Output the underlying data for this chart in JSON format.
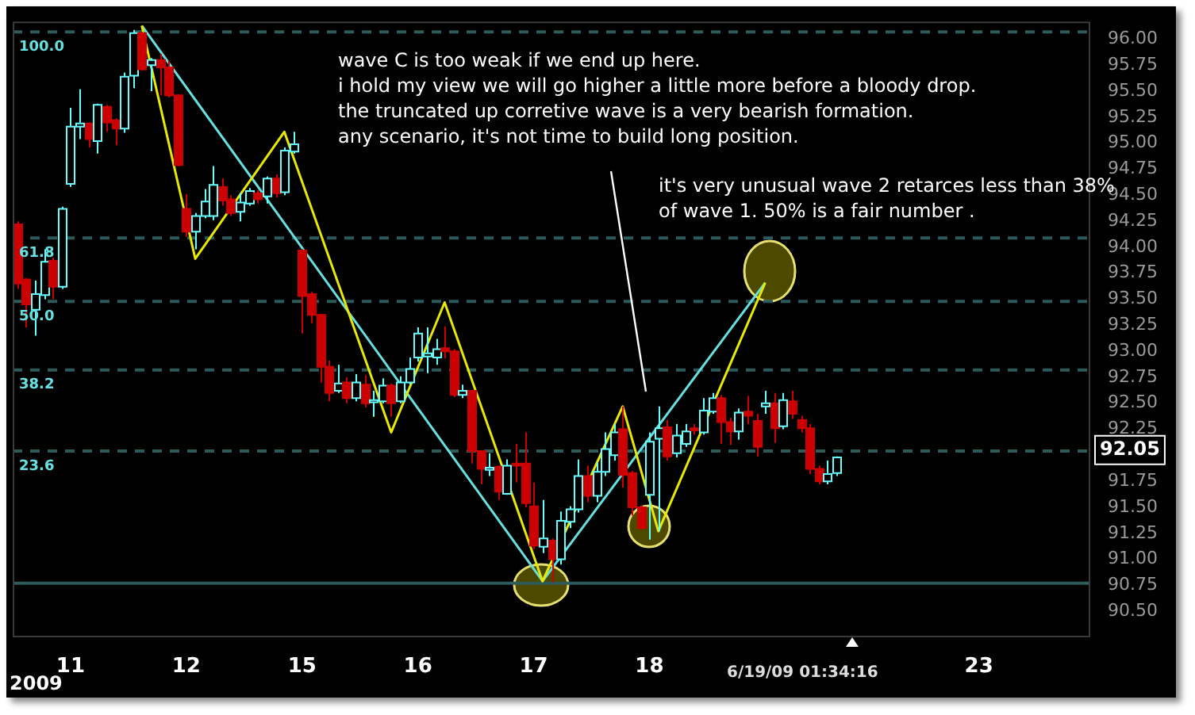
{
  "chart_data": {
    "type": "candlestick",
    "categories": [
      null,
      null,
      null,
      null,
      null,
      null,
      "11",
      null,
      null,
      null,
      null,
      null,
      null,
      null,
      null,
      null,
      null,
      null,
      null,
      "12",
      null,
      null,
      null,
      null,
      null,
      null,
      null,
      null,
      null,
      null,
      null,
      null,
      "15",
      null,
      null,
      null,
      null,
      null,
      null,
      null,
      null,
      null,
      null,
      null,
      null,
      "16",
      null,
      null,
      null,
      null,
      null,
      null,
      null,
      null,
      null,
      null,
      null,
      null,
      "17",
      null,
      null,
      null,
      null,
      null,
      null,
      null,
      null,
      null,
      null,
      null,
      null,
      "18",
      null,
      null,
      null,
      null,
      null,
      null,
      null,
      null,
      null,
      null,
      null,
      null,
      null,
      null,
      null,
      null,
      null,
      null,
      null,
      null,
      null,
      null,
      null,
      null,
      null,
      null,
      null,
      null,
      null,
      null,
      null,
      null,
      null,
      null,
      null,
      null,
      "23",
      null,
      null,
      null,
      null,
      null,
      null,
      null,
      null,
      null,
      null,
      null,
      null
    ],
    "ohlc": [
      [
        94.22,
        94.25,
        93.6,
        93.65
      ],
      [
        93.69,
        93.7,
        93.23,
        93.45
      ],
      [
        93.4,
        93.68,
        93.15,
        93.55
      ],
      [
        93.54,
        93.98,
        93.5,
        93.86
      ],
      [
        93.87,
        93.9,
        93.5,
        93.62
      ],
      [
        93.62,
        94.39,
        93.6,
        94.37
      ],
      [
        94.61,
        95.34,
        94.58,
        95.16
      ],
      [
        95.16,
        95.52,
        95.04,
        95.19
      ],
      [
        95.19,
        95.2,
        94.96,
        95.04
      ],
      [
        95.02,
        95.38,
        94.9,
        95.37
      ],
      [
        95.35,
        95.37,
        95.11,
        95.2
      ],
      [
        95.22,
        95.24,
        94.98,
        95.14
      ],
      [
        95.14,
        95.68,
        95.1,
        95.64
      ],
      [
        95.65,
        96.09,
        95.53,
        96.06
      ],
      [
        96.06,
        96.07,
        95.7,
        95.71
      ],
      [
        95.75,
        95.82,
        95.5,
        95.8
      ],
      [
        95.8,
        95.86,
        95.46,
        95.73
      ],
      [
        95.73,
        95.79,
        95.44,
        95.46
      ],
      [
        95.46,
        95.47,
        94.78,
        94.79
      ],
      [
        94.37,
        94.51,
        94.1,
        94.15
      ],
      [
        94.15,
        94.33,
        93.98,
        94.3
      ],
      [
        94.3,
        94.56,
        94.28,
        94.44
      ],
      [
        94.3,
        94.78,
        94.26,
        94.6
      ],
      [
        94.58,
        94.66,
        94.4,
        94.45
      ],
      [
        94.46,
        94.5,
        94.3,
        94.33
      ],
      [
        94.34,
        94.52,
        94.25,
        94.43
      ],
      [
        94.42,
        94.57,
        94.4,
        94.54
      ],
      [
        94.52,
        94.55,
        94.42,
        94.46
      ],
      [
        94.49,
        94.68,
        94.42,
        94.66
      ],
      [
        94.66,
        94.7,
        94.48,
        94.52
      ],
      [
        94.53,
        94.96,
        94.5,
        94.93
      ],
      [
        94.92,
        95.11,
        94.9,
        94.99
      ],
      [
        93.97,
        93.98,
        93.17,
        93.53
      ],
      [
        93.55,
        93.57,
        93.27,
        93.35
      ],
      [
        93.35,
        93.36,
        92.7,
        92.85
      ],
      [
        92.85,
        92.91,
        92.52,
        92.6
      ],
      [
        92.62,
        92.87,
        92.6,
        92.69
      ],
      [
        92.7,
        92.75,
        92.5,
        92.55
      ],
      [
        92.55,
        92.78,
        92.52,
        92.7
      ],
      [
        92.68,
        92.77,
        92.46,
        92.5
      ],
      [
        92.51,
        92.62,
        92.37,
        92.53
      ],
      [
        92.52,
        92.74,
        92.5,
        92.67
      ],
      [
        92.67,
        92.69,
        92.37,
        92.5
      ],
      [
        92.52,
        92.76,
        92.5,
        92.7
      ],
      [
        92.7,
        92.94,
        92.68,
        92.83
      ],
      [
        92.94,
        93.23,
        92.9,
        93.17
      ],
      [
        92.95,
        93.23,
        92.79,
        92.98
      ],
      [
        92.94,
        93.12,
        92.87,
        93.02
      ],
      [
        93.03,
        93.24,
        92.93,
        93.0
      ],
      [
        93.0,
        93.02,
        92.56,
        92.58
      ],
      [
        92.58,
        92.68,
        92.55,
        92.62
      ],
      [
        92.62,
        92.63,
        91.92,
        92.04
      ],
      [
        92.04,
        92.05,
        91.72,
        91.87
      ],
      [
        91.86,
        92.02,
        91.8,
        91.88
      ],
      [
        91.89,
        91.9,
        91.57,
        91.65
      ],
      [
        91.63,
        91.96,
        91.62,
        91.9
      ],
      [
        91.92,
        92.11,
        91.74,
        91.9
      ],
      [
        91.92,
        92.22,
        91.5,
        91.54
      ],
      [
        91.51,
        91.74,
        91.1,
        91.13
      ],
      [
        91.12,
        91.57,
        91.06,
        91.2
      ],
      [
        91.18,
        91.2,
        90.78,
        91.0
      ],
      [
        91.0,
        91.46,
        90.95,
        91.37
      ],
      [
        91.36,
        91.51,
        91.3,
        91.48
      ],
      [
        91.48,
        91.96,
        91.45,
        91.8
      ],
      [
        91.8,
        91.9,
        91.55,
        91.61
      ],
      [
        91.61,
        91.93,
        91.55,
        91.84
      ],
      [
        91.84,
        92.22,
        91.8,
        92.06
      ],
      [
        92.0,
        92.3,
        91.95,
        92.22
      ],
      [
        92.25,
        92.47,
        91.69,
        91.81
      ],
      [
        91.83,
        91.85,
        91.42,
        91.5
      ],
      [
        91.5,
        91.52,
        91.29,
        91.3
      ],
      [
        91.62,
        92.22,
        91.19,
        92.13
      ],
      [
        92.16,
        92.47,
        91.27,
        92.26
      ],
      [
        92.27,
        92.34,
        91.95,
        91.99
      ],
      [
        92.02,
        92.3,
        91.98,
        92.19
      ],
      [
        92.11,
        92.3,
        92.08,
        92.23
      ],
      [
        92.26,
        92.3,
        92.2,
        92.24
      ],
      [
        92.22,
        92.55,
        92.2,
        92.43
      ],
      [
        92.42,
        92.6,
        92.4,
        92.55
      ],
      [
        92.55,
        92.58,
        92.11,
        92.32
      ],
      [
        92.32,
        92.36,
        92.1,
        92.23
      ],
      [
        92.23,
        92.45,
        92.15,
        92.41
      ],
      [
        92.42,
        92.57,
        92.3,
        92.38
      ],
      [
        92.33,
        92.4,
        91.99,
        92.08
      ],
      [
        92.47,
        92.62,
        92.4,
        92.5
      ],
      [
        92.5,
        92.6,
        92.12,
        92.26
      ],
      [
        92.28,
        92.6,
        92.25,
        92.53
      ],
      [
        92.52,
        92.62,
        92.35,
        92.4
      ],
      [
        92.34,
        92.38,
        92.22,
        92.26
      ],
      [
        92.26,
        92.3,
        91.82,
        91.87
      ],
      [
        91.87,
        91.9,
        91.72,
        91.75
      ],
      [
        91.75,
        91.95,
        91.72,
        91.82
      ],
      [
        91.83,
        91.99,
        91.8,
        91.98
      ],
      null,
      null,
      null,
      null,
      null,
      null,
      null,
      null,
      null,
      null,
      null,
      null,
      null,
      null,
      null,
      null,
      null,
      null,
      null,
      null,
      null,
      null,
      null,
      null,
      null,
      null,
      null,
      null
    ],
    "series": [
      {
        "type": "line",
        "color": "#e8e800",
        "values": [
          null,
          null,
          null,
          null,
          null,
          null,
          null,
          null,
          null,
          null,
          null,
          null,
          null,
          null,
          96.13,
          null,
          null,
          null,
          null,
          null,
          93.89,
          null,
          null,
          null,
          null,
          null,
          null,
          null,
          null,
          null,
          95.11,
          null,
          null,
          null,
          null,
          null,
          null,
          null,
          null,
          null,
          null,
          null,
          92.22,
          null,
          null,
          null,
          null,
          null,
          93.47,
          null,
          null,
          null,
          null,
          null,
          null,
          null,
          null,
          null,
          null,
          90.79,
          null,
          null,
          null,
          null,
          null,
          null,
          null,
          null,
          92.47,
          null,
          null,
          null,
          91.27,
          null,
          null,
          null,
          null,
          null,
          null,
          null,
          null,
          null,
          null,
          null,
          93.66,
          null,
          null,
          null,
          null,
          null,
          null,
          null,
          null,
          null,
          null,
          null,
          null,
          null,
          null,
          null,
          null,
          null,
          null,
          null,
          null,
          null,
          null,
          null,
          null,
          null,
          null,
          null,
          null,
          null,
          null,
          null,
          null,
          null,
          null,
          null,
          null
        ]
      },
      {
        "type": "line",
        "color": "#66e0e0",
        "values": [
          null,
          null,
          null,
          null,
          null,
          null,
          null,
          null,
          null,
          null,
          null,
          null,
          null,
          null,
          96.13,
          null,
          null,
          null,
          null,
          null,
          null,
          null,
          null,
          null,
          null,
          null,
          null,
          null,
          null,
          null,
          null,
          null,
          null,
          null,
          null,
          null,
          null,
          null,
          null,
          null,
          null,
          null,
          null,
          null,
          null,
          null,
          null,
          null,
          null,
          null,
          null,
          null,
          null,
          null,
          null,
          null,
          null,
          null,
          null,
          90.79,
          null,
          null,
          null,
          null,
          null,
          null,
          null,
          null,
          null,
          null,
          null,
          null,
          null,
          null,
          null,
          null,
          null,
          null,
          null,
          null,
          null,
          null,
          null,
          null,
          93.66,
          null,
          null,
          null,
          null,
          null,
          null,
          null,
          null,
          null,
          null,
          null,
          null,
          null,
          null,
          null,
          null,
          null,
          null,
          null,
          null,
          null,
          null,
          null,
          null,
          null,
          null,
          null,
          null,
          null,
          null,
          null,
          null,
          null,
          null,
          null,
          null
        ]
      }
    ],
    "ylim": [
      90.25,
      96.17
    ],
    "yticks": [
      {
        "value": 90.5,
        "label": "90.50"
      },
      {
        "value": 90.75,
        "label": "90.75"
      },
      {
        "value": 91,
        "label": "91.00"
      },
      {
        "value": 91.25,
        "label": "91.25"
      },
      {
        "value": 91.5,
        "label": "91.50"
      },
      {
        "value": 91.75,
        "label": "91.75"
      },
      {
        "value": 92.25,
        "label": "92.25"
      },
      {
        "value": 92.5,
        "label": "92.50"
      },
      {
        "value": 92.75,
        "label": "92.75"
      },
      {
        "value": 93,
        "label": "93.00"
      },
      {
        "value": 93.25,
        "label": "93.25"
      },
      {
        "value": 93.5,
        "label": "93.50"
      },
      {
        "value": 93.75,
        "label": "93.75"
      },
      {
        "value": 94,
        "label": "94.00"
      },
      {
        "value": 94.25,
        "label": "94.25"
      },
      {
        "value": 94.5,
        "label": "94.50"
      },
      {
        "value": 94.75,
        "label": "94.75"
      },
      {
        "value": 95,
        "label": "95.00"
      },
      {
        "value": 95.25,
        "label": "95.25"
      },
      {
        "value": 95.5,
        "label": "95.50"
      },
      {
        "value": 95.75,
        "label": "95.75"
      },
      {
        "value": 96,
        "label": "96.00"
      }
    ],
    "ref_lines": [
      {
        "axis": "y",
        "value": 96.07,
        "color": "#2e5a5a",
        "line_style": "dashed"
      },
      {
        "axis": "y",
        "value": 94.09,
        "color": "#2e5a5a",
        "line_style": "dashed"
      },
      {
        "axis": "y",
        "value": 93.48,
        "color": "#2e5a5a",
        "line_style": "dashed"
      },
      {
        "axis": "y",
        "value": 92.82,
        "color": "#2e5a5a",
        "line_style": "dashed"
      },
      {
        "axis": "y",
        "value": 92.04,
        "color": "#2e5a5a",
        "line_style": "dashed"
      },
      {
        "axis": "y",
        "value": 90.77,
        "color": "#2e5a5a",
        "line_style": "solid"
      }
    ],
    "annotations": [
      "wave C is too weak if we end up here.\ni hold my view we will go higher a little more before a bloody drop.\nthe truncated up corretive wave is a very bearish formation.\nany scenario, it's not time to build long position.",
      "it's very unusual wave 2 retarces less than 38%\nof wave 1. 50% is a fair number .",
      {
        "text": "92.05",
        "y": 92.05
      },
      "6/19/09 01:34:16",
      "2009",
      {
        "text": "100.0",
        "y": 96.07
      },
      {
        "text": "61.8",
        "y": 94.09
      },
      {
        "text": "50.0",
        "y": 93.48
      },
      {
        "text": "38.2",
        "y": 92.82
      },
      {
        "text": "23.6",
        "y": 92.04
      }
    ],
    "legend": false
  }
}
